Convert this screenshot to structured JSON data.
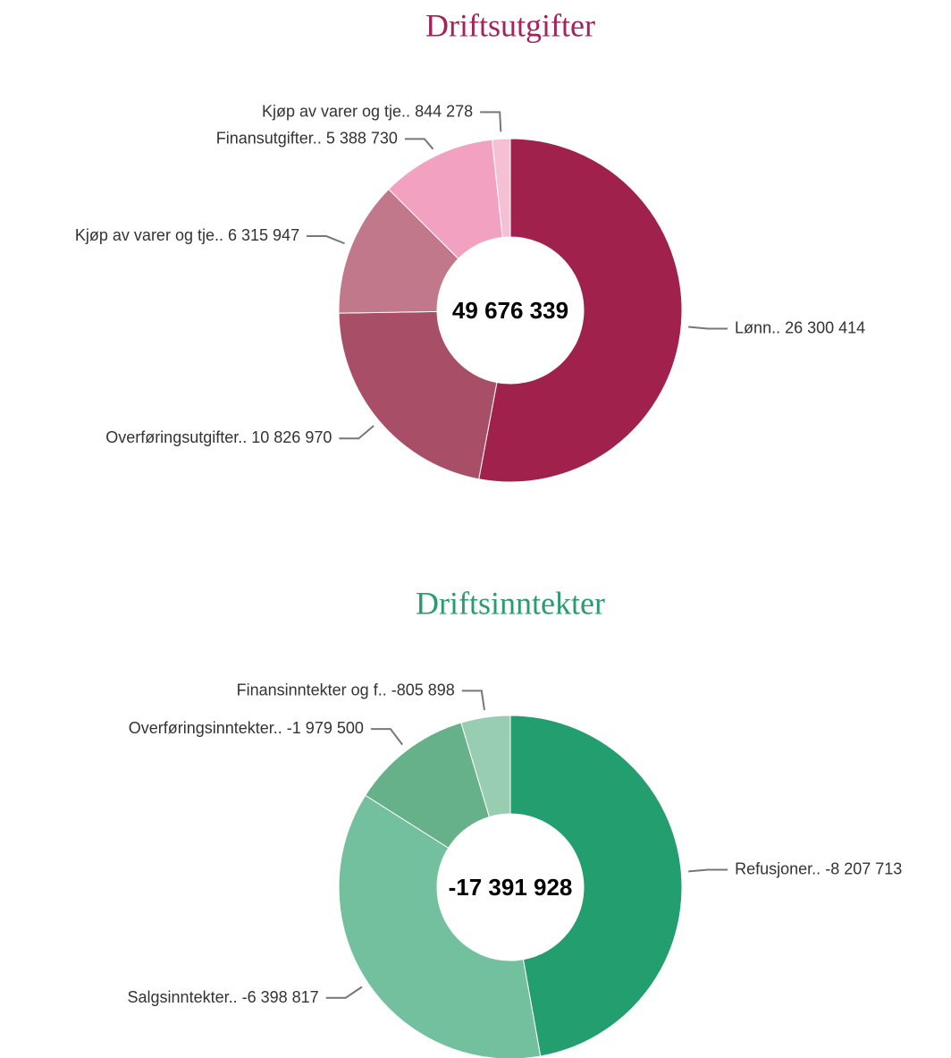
{
  "chart_data": [
    {
      "type": "donut",
      "title": "Driftsutgifter",
      "title_color": "#a3245a",
      "center_label": "49 676 339",
      "categories": [
        "Lønn..",
        "Overføringsutgifter..",
        "Kjøp av varer og tje..",
        "Finansutgifter..",
        "Kjøp av varer og tje.."
      ],
      "values": [
        26300414,
        10826970,
        6315947,
        5388730,
        844278
      ],
      "value_labels": [
        "26 300 414",
        "10 826 970",
        "6 315 947",
        "5 388 730",
        "844 278"
      ],
      "colors": [
        "#a0214c",
        "#a84e66",
        "#c0788a",
        "#f2a2c0",
        "#f5c0d3"
      ]
    },
    {
      "type": "donut",
      "title": "Driftsinntekter",
      "title_color": "#2a9d6e",
      "center_label": "-17 391 928",
      "categories": [
        "Refusjoner..",
        "Salgsinntekter..",
        "Overføringsinntekter..",
        "Finansinntekter og f.."
      ],
      "values": [
        -8207713,
        -6398817,
        -1979500,
        -805898
      ],
      "value_labels": [
        "-8 207 713",
        "-6 398 817",
        "-1 979 500",
        "-805 898"
      ],
      "colors": [
        "#239e6f",
        "#73c09e",
        "#66b08a",
        "#99cdb1"
      ]
    }
  ]
}
